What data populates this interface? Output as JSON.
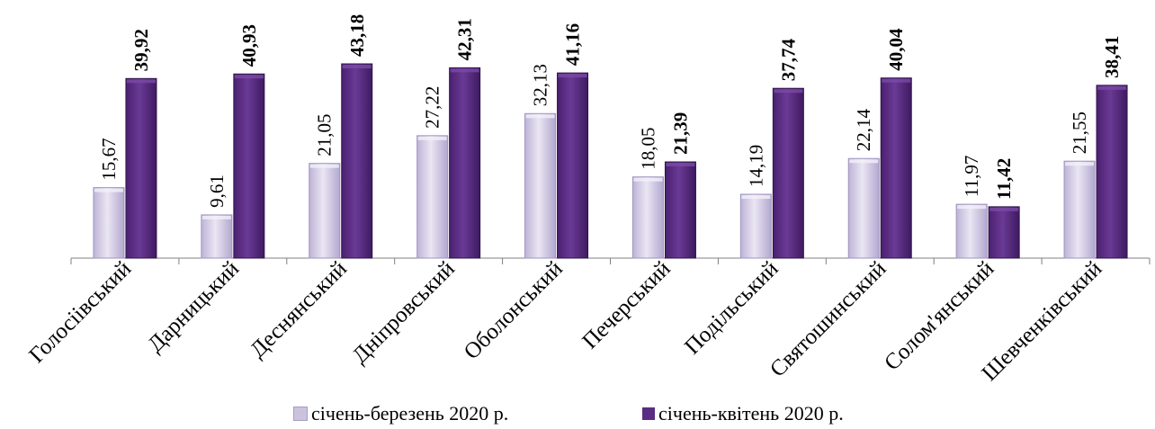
{
  "chart_data": {
    "type": "bar",
    "title": "",
    "xlabel": "",
    "ylabel": "",
    "ylim": [
      0,
      45
    ],
    "grid": false,
    "legend": "bottom",
    "categories": [
      "Голосіівський",
      "Дарницький",
      "Деснянський",
      "Дніпровський",
      "Оболонський",
      "Печерський",
      "Подільський",
      "Святошинський",
      "Солом'янський",
      "Шевченківський"
    ],
    "series": [
      {
        "name": "січень-березень 2020 р.",
        "values": [
          15.67,
          9.61,
          21.05,
          27.22,
          32.13,
          18.05,
          14.19,
          22.14,
          11.97,
          21.55
        ],
        "labels": [
          "15,67",
          "9,61",
          "21,05",
          "27,22",
          "32,13",
          "18,05",
          "14,19",
          "22,14",
          "11,97",
          "21,55"
        ],
        "color": "#cbc3de"
      },
      {
        "name": "січень-квітень 2020 р.",
        "values": [
          39.92,
          40.93,
          43.18,
          42.31,
          41.16,
          21.39,
          37.74,
          40.04,
          11.42,
          38.41
        ],
        "labels": [
          "39,92",
          "40,93",
          "43,18",
          "42,31",
          "41,16",
          "21,39",
          "37,74",
          "40,04",
          "11,42",
          "38,41"
        ],
        "color": "#5b2c84"
      }
    ]
  }
}
